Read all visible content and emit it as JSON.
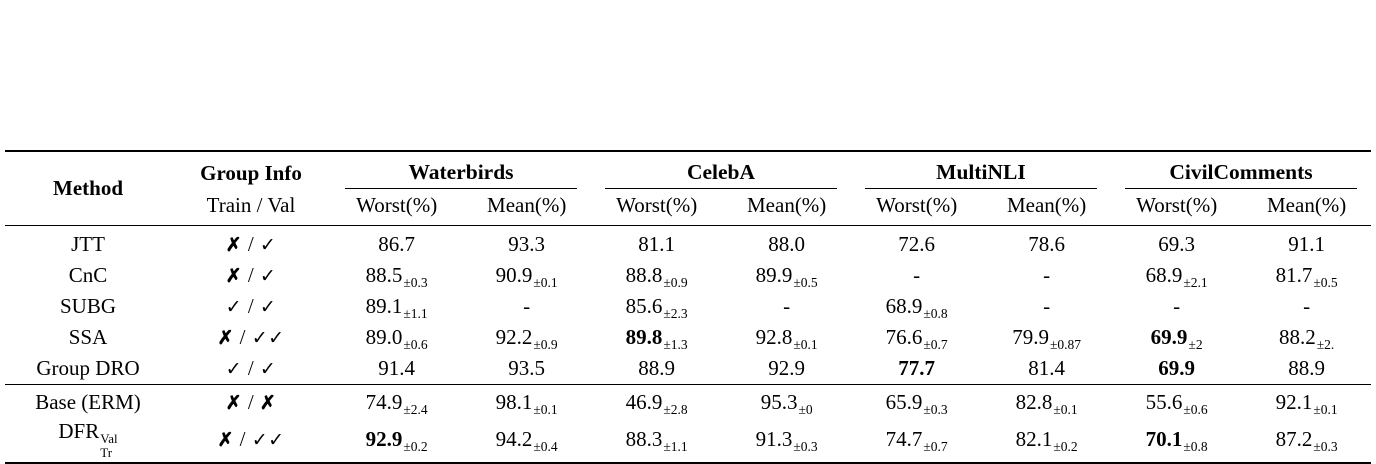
{
  "table": {
    "headers": {
      "method": "Method",
      "group_info": "Group Info",
      "train_val": "Train / Val",
      "worst": "Worst(%)",
      "mean": "Mean(%)"
    },
    "datasets": [
      "Waterbirds",
      "CelebA",
      "MultiNLI",
      "CivilComments"
    ],
    "rows": [
      {
        "method": {
          "base": "JTT"
        },
        "group_info": "✗ / ✓",
        "cells": [
          {
            "value": "86.7"
          },
          {
            "value": "93.3"
          },
          {
            "value": "81.1"
          },
          {
            "value": "88.0"
          },
          {
            "value": "72.6"
          },
          {
            "value": "78.6"
          },
          {
            "value": "69.3"
          },
          {
            "value": "91.1"
          }
        ]
      },
      {
        "method": {
          "base": "CnC"
        },
        "group_info": "✗ / ✓",
        "cells": [
          {
            "value": "88.5",
            "sub": "±0.3"
          },
          {
            "value": "90.9",
            "sub": "±0.1"
          },
          {
            "value": "88.8",
            "sub": "±0.9"
          },
          {
            "value": "89.9",
            "sub": "±0.5"
          },
          {
            "value": "-"
          },
          {
            "value": "-"
          },
          {
            "value": "68.9",
            "sub": "±2.1"
          },
          {
            "value": "81.7",
            "sub": "±0.5"
          }
        ]
      },
      {
        "method": {
          "base": "SUBG"
        },
        "group_info": "✓ / ✓",
        "cells": [
          {
            "value": "89.1",
            "sub": "±1.1"
          },
          {
            "value": "-"
          },
          {
            "value": "85.6",
            "sub": "±2.3"
          },
          {
            "value": "-"
          },
          {
            "value": "68.9",
            "sub": "±0.8"
          },
          {
            "value": "-"
          },
          {
            "value": "-"
          },
          {
            "value": "-"
          }
        ]
      },
      {
        "method": {
          "base": "SSA"
        },
        "group_info": "✗ / ✓✓",
        "cells": [
          {
            "value": "89.0",
            "sub": "±0.6"
          },
          {
            "value": "92.2",
            "sub": "±0.9"
          },
          {
            "value": "89.8",
            "sub": "±1.3",
            "bold": true
          },
          {
            "value": "92.8",
            "sub": "±0.1"
          },
          {
            "value": "76.6",
            "sub": "±0.7"
          },
          {
            "value": "79.9",
            "sub": "±0.87"
          },
          {
            "value": "69.9",
            "sub": "±2",
            "bold": true
          },
          {
            "value": "88.2",
            "sub": "±2."
          }
        ]
      },
      {
        "method": {
          "base": "Group DRO"
        },
        "group_info": "✓ / ✓",
        "cells": [
          {
            "value": "91.4"
          },
          {
            "value": "93.5"
          },
          {
            "value": "88.9"
          },
          {
            "value": "92.9"
          },
          {
            "value": "77.7",
            "bold": true
          },
          {
            "value": "81.4"
          },
          {
            "value": "69.9",
            "bold": true
          },
          {
            "value": "88.9"
          }
        ]
      },
      {
        "method": {
          "base": "Base (ERM)"
        },
        "group_info": "✗ / ✗",
        "section_start": true,
        "cells": [
          {
            "value": "74.9",
            "sub": "±2.4"
          },
          {
            "value": "98.1",
            "sub": "±0.1"
          },
          {
            "value": "46.9",
            "sub": "±2.8"
          },
          {
            "value": "95.3",
            "sub": "±0"
          },
          {
            "value": "65.9",
            "sub": "±0.3"
          },
          {
            "value": "82.8",
            "sub": "±0.1"
          },
          {
            "value": "55.6",
            "sub": "±0.6"
          },
          {
            "value": "92.1",
            "sub": "±0.1"
          }
        ]
      },
      {
        "method": {
          "base": "DFR",
          "sup": "Val",
          "sub": "Tr"
        },
        "group_info": "✗ / ✓✓",
        "cells": [
          {
            "value": "92.9",
            "sub": "±0.2",
            "bold": true
          },
          {
            "value": "94.2",
            "sub": "±0.4"
          },
          {
            "value": "88.3",
            "sub": "±1.1"
          },
          {
            "value": "91.3",
            "sub": "±0.3"
          },
          {
            "value": "74.7",
            "sub": "±0.7"
          },
          {
            "value": "82.1",
            "sub": "±0.2"
          },
          {
            "value": "70.1",
            "sub": "±0.8",
            "bold": true
          },
          {
            "value": "87.2",
            "sub": "±0.3"
          }
        ]
      }
    ]
  }
}
